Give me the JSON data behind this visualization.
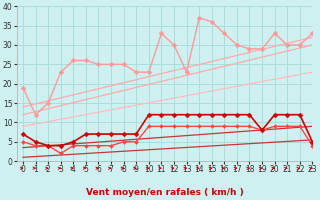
{
  "xlabel": "Vent moyen/en rafales ( km/h )",
  "bg_color": "#cff0f0",
  "grid_color": "#aadddd",
  "xlim": [
    -0.5,
    23
  ],
  "ylim": [
    0,
    40
  ],
  "yticks": [
    0,
    5,
    10,
    15,
    20,
    25,
    30,
    35,
    40
  ],
  "xticks": [
    0,
    1,
    2,
    3,
    4,
    5,
    6,
    7,
    8,
    9,
    10,
    11,
    12,
    13,
    14,
    15,
    16,
    17,
    18,
    19,
    20,
    21,
    22,
    23
  ],
  "series": [
    {
      "name": "rafales_pink",
      "x": [
        0,
        1,
        2,
        3,
        4,
        5,
        6,
        7,
        8,
        9,
        10,
        11,
        12,
        13,
        14,
        15,
        16,
        17,
        18,
        19,
        20,
        21,
        22,
        23
      ],
      "y": [
        19,
        12,
        15,
        23,
        26,
        26,
        25,
        25,
        25,
        23,
        23,
        33,
        30,
        23,
        37,
        36,
        33,
        30,
        29,
        29,
        33,
        30,
        30,
        33
      ],
      "color": "#ff9999",
      "marker": "D",
      "markersize": 2.5,
      "linewidth": 1.0,
      "zorder": 3
    },
    {
      "name": "trend_top1",
      "x": [
        0,
        23
      ],
      "y": [
        14,
        32
      ],
      "color": "#ffaaaa",
      "linewidth": 0.9,
      "zorder": 2
    },
    {
      "name": "trend_top2",
      "x": [
        0,
        23
      ],
      "y": [
        12,
        30
      ],
      "color": "#ffaaaa",
      "linewidth": 0.9,
      "zorder": 2
    },
    {
      "name": "trend_top3",
      "x": [
        0,
        23
      ],
      "y": [
        9,
        23
      ],
      "color": "#ffbbbb",
      "linewidth": 0.9,
      "zorder": 2
    },
    {
      "name": "vent_moyen_dark",
      "x": [
        0,
        1,
        2,
        3,
        4,
        5,
        6,
        7,
        8,
        9,
        10,
        11,
        12,
        13,
        14,
        15,
        16,
        17,
        18,
        19,
        20,
        21,
        22,
        23
      ],
      "y": [
        7,
        5,
        4,
        4,
        5,
        7,
        7,
        7,
        7,
        7,
        12,
        12,
        12,
        12,
        12,
        12,
        12,
        12,
        12,
        8,
        12,
        12,
        12,
        5
      ],
      "color": "#cc0000",
      "marker": "D",
      "markersize": 2.5,
      "linewidth": 1.2,
      "zorder": 5
    },
    {
      "name": "vent_moyen_mid",
      "x": [
        0,
        1,
        2,
        3,
        4,
        5,
        6,
        7,
        8,
        9,
        10,
        11,
        12,
        13,
        14,
        15,
        16,
        17,
        18,
        19,
        20,
        21,
        22,
        23
      ],
      "y": [
        5,
        4,
        4,
        2,
        4,
        4,
        4,
        4,
        5,
        5,
        9,
        9,
        9,
        9,
        9,
        9,
        9,
        9,
        9,
        8,
        9,
        9,
        9,
        4
      ],
      "color": "#ff4444",
      "marker": "D",
      "markersize": 2.0,
      "linewidth": 1.0,
      "zorder": 4
    },
    {
      "name": "trend_low1",
      "x": [
        0,
        23
      ],
      "y": [
        3.5,
        9
      ],
      "color": "#cc3333",
      "linewidth": 0.9,
      "zorder": 2
    },
    {
      "name": "trend_low2",
      "x": [
        0,
        23
      ],
      "y": [
        1,
        5.5
      ],
      "color": "#cc3333",
      "linewidth": 0.9,
      "zorder": 2
    }
  ],
  "arrows_angles_deg": [
    2,
    2,
    2,
    5,
    5,
    5,
    5,
    7,
    7,
    7,
    8,
    8,
    9,
    9,
    10,
    11,
    12,
    13,
    14,
    15,
    17,
    20,
    23,
    27
  ]
}
